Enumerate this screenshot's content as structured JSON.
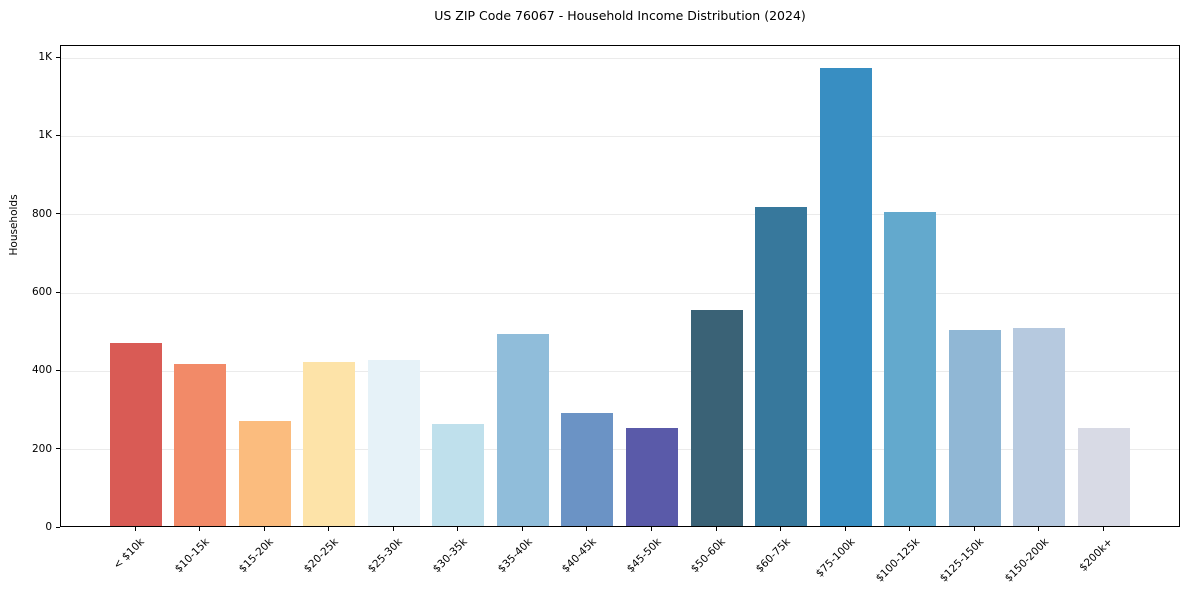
{
  "chart_data": {
    "type": "bar",
    "title": "US ZIP Code 76067 - Household Income Distribution (2024)",
    "xlabel": "",
    "ylabel": "Households",
    "categories": [
      "< $10k",
      "$10-15k",
      "$15-20k",
      "$20-25k",
      "$25-30k",
      "$30-35k",
      "$35-40k",
      "$40-45k",
      "$45-50k",
      "$50-60k",
      "$60-75k",
      "$75-100k",
      "$100-125k",
      "$125-150k",
      "$150-200k",
      "$200k+"
    ],
    "values": [
      467,
      415,
      268,
      420,
      425,
      261,
      490,
      289,
      250,
      551,
      816,
      1171,
      801,
      500,
      506,
      251
    ],
    "bar_colors": [
      "#d95b55",
      "#f28a68",
      "#fbbc7e",
      "#fde3a8",
      "#e6f2f8",
      "#bfe0ec",
      "#90bdda",
      "#6b93c5",
      "#5a5aa9",
      "#3a6276",
      "#37789c",
      "#388ec2",
      "#63a9cd",
      "#90b7d5",
      "#b6c9df",
      "#d8dae5"
    ],
    "y_ticks": {
      "values": [
        0,
        200,
        400,
        600,
        800,
        1000,
        1200
      ],
      "labels": [
        "0",
        "200",
        "400",
        "600",
        "800",
        "1K",
        "1K"
      ]
    },
    "ylim": [
      0,
      1231
    ],
    "grid": "horizontal",
    "legend": "none",
    "background_color": "#ffffff",
    "spine_color": "#000000",
    "gridline_color": "#ebebeb"
  }
}
